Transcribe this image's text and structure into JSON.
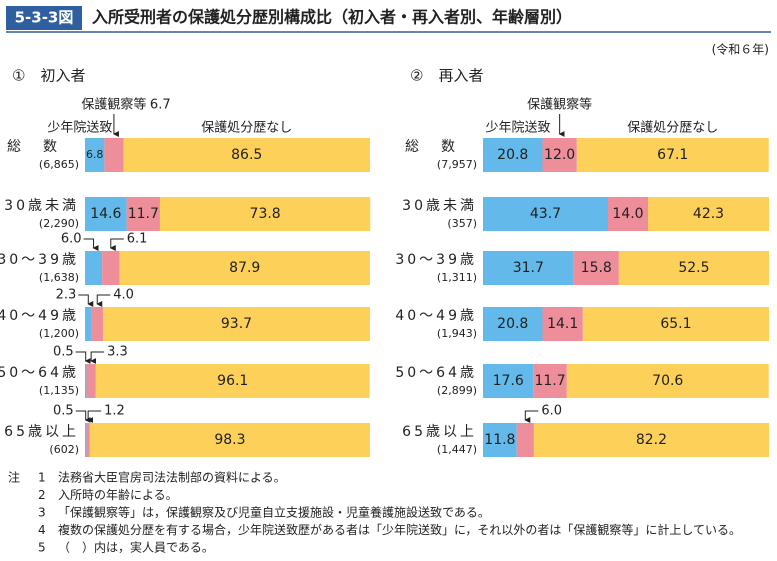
{
  "header": {
    "figure_no": "5-3-3図",
    "title": "入所受刑者の保護処分歴別構成比（初入者・再入者別、年齢層別）",
    "era": "(令和６年)"
  },
  "chart_data": [
    {
      "type": "stacked-bar-h",
      "title": "①　初入者",
      "categories": [
        "総数",
        "30歳未満",
        "30～39歳",
        "40～49歳",
        "50～64歳",
        "65歳以上"
      ],
      "sizes": [
        "(6,865)",
        "(2,290)",
        "(1,638)",
        "(1,200)",
        "(1,135)",
        "(602)"
      ],
      "xlim": [
        0,
        100
      ],
      "series": [
        {
          "name": "少年院送致",
          "color": "#62b9ea",
          "values": [
            6.8,
            14.6,
            6.0,
            2.3,
            0.5,
            0.5
          ],
          "value_labels": [
            "6.8",
            "14.6",
            "6.0",
            "2.3",
            "0.5",
            "0.5"
          ]
        },
        {
          "name": "保護観察等",
          "color": "#ee8e9a",
          "values": [
            6.7,
            11.7,
            6.1,
            4.0,
            3.3,
            1.2
          ],
          "value_labels": [
            "6.7",
            "11.7",
            "6.1",
            "4.0",
            "3.3",
            "1.2"
          ]
        },
        {
          "name": "保護処分歴なし",
          "color": "#fdd159",
          "values": [
            86.5,
            73.8,
            87.9,
            93.7,
            96.1,
            98.3
          ],
          "value_labels": [
            "86.5",
            "73.8",
            "87.9",
            "93.7",
            "96.1",
            "98.3"
          ]
        }
      ]
    },
    {
      "type": "stacked-bar-h",
      "title": "②　再入者",
      "categories": [
        "総数",
        "30歳未満",
        "30～39歳",
        "40～49歳",
        "50～64歳",
        "65歳以上"
      ],
      "sizes": [
        "(7,957)",
        "(357)",
        "(1,311)",
        "(1,943)",
        "(2,899)",
        "(1,447)"
      ],
      "xlim": [
        0,
        100
      ],
      "series": [
        {
          "name": "少年院送致",
          "color": "#62b9ea",
          "values": [
            20.8,
            43.7,
            31.7,
            20.8,
            17.6,
            11.8
          ],
          "value_labels": [
            "20.8",
            "43.7",
            "31.7",
            "20.8",
            "17.6",
            "11.8"
          ]
        },
        {
          "name": "保護観察等",
          "color": "#ee8e9a",
          "values": [
            12.0,
            14.0,
            15.8,
            14.1,
            11.7,
            6.0
          ],
          "value_labels": [
            "12.0",
            "14.0",
            "15.8",
            "14.1",
            "11.7",
            "6.0"
          ]
        },
        {
          "name": "保護処分歴なし",
          "color": "#fdd159",
          "values": [
            67.1,
            42.3,
            52.5,
            65.1,
            70.6,
            82.2
          ],
          "value_labels": [
            "67.1",
            "42.3",
            "52.5",
            "65.1",
            "70.6",
            "82.2"
          ]
        }
      ]
    }
  ],
  "notes": {
    "label": "注",
    "items": [
      {
        "num": "1",
        "text": "法務省大臣官房司法法制部の資料による。"
      },
      {
        "num": "2",
        "text": "入所時の年齢による。"
      },
      {
        "num": "3",
        "text": "「保護観察等」は，保護観察及び児童自立支援施設・児童養護施設送致である。"
      },
      {
        "num": "4",
        "text": "複数の保護処分歴を有する場合，少年院送致歴がある者は「少年院送致」に，それ以外の者は「保護観察等」に計上している。"
      },
      {
        "num": "5",
        "text": "（　）内は，実人員である。"
      }
    ]
  }
}
